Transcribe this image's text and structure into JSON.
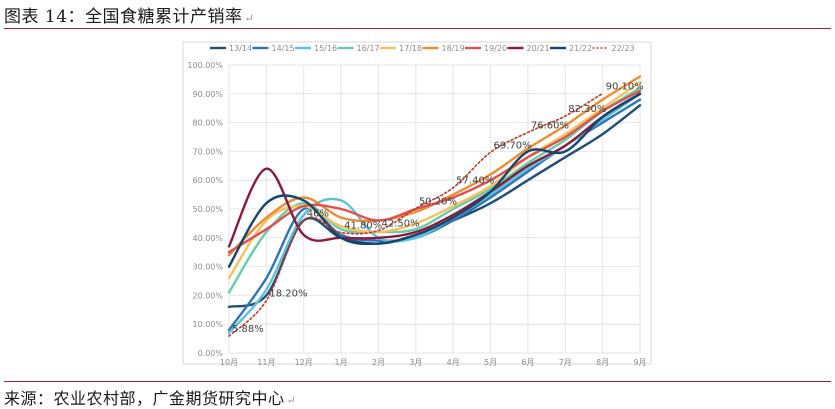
{
  "header": {
    "title": "图表 14：全国食糖累计产销率",
    "return_mark": "↵"
  },
  "footer": {
    "source": "来源：农业农村部，广金期货研究中心",
    "return_mark": "↵"
  },
  "chart_data": {
    "type": "line",
    "title": "",
    "xlabel": "",
    "ylabel": "",
    "ylim": [
      0,
      100
    ],
    "ytick_labels": [
      "0.00%",
      "10.00%",
      "20.00%",
      "30.00%",
      "40.00%",
      "50.00%",
      "60.00%",
      "70.00%",
      "80.00%",
      "90.00%",
      "100.00%"
    ],
    "categories": [
      "10月",
      "11月",
      "12月",
      "1月",
      "2月",
      "3月",
      "4月",
      "5月",
      "6月",
      "7月",
      "8月",
      "9月"
    ],
    "legend_position": "top",
    "series": [
      {
        "name": "13/14",
        "color": "#1f4e79",
        "dash": false,
        "values": [
          16,
          20,
          46,
          40,
          38,
          41,
          46,
          52,
          60,
          68,
          76,
          86
        ]
      },
      {
        "name": "14/15",
        "color": "#2e75b6",
        "dash": false,
        "values": [
          8,
          26,
          50,
          41,
          39,
          40,
          46,
          54,
          63,
          72,
          80,
          88
        ]
      },
      {
        "name": "15/16",
        "color": "#5bc0de",
        "dash": false,
        "values": [
          7,
          22,
          48,
          53,
          40,
          40,
          47,
          55,
          64,
          72,
          81,
          90
        ]
      },
      {
        "name": "16/17",
        "color": "#66cdaa",
        "dash": false,
        "values": [
          21,
          42,
          52,
          43,
          42,
          43,
          50,
          57,
          66,
          74,
          84,
          92
        ]
      },
      {
        "name": "17/18",
        "color": "#f5c15f",
        "dash": false,
        "values": [
          26,
          46,
          51,
          44,
          42,
          45,
          51,
          58,
          68,
          76,
          85,
          94
        ]
      },
      {
        "name": "18/19",
        "color": "#ed8b2f",
        "dash": false,
        "values": [
          34,
          47,
          54,
          47,
          46,
          49,
          55,
          62,
          71,
          79,
          88,
          96
        ]
      },
      {
        "name": "19/20",
        "color": "#e0504f",
        "dash": false,
        "values": [
          35,
          43,
          51,
          50,
          46,
          50,
          54,
          60,
          68,
          75,
          84,
          91
        ]
      },
      {
        "name": "20/21",
        "color": "#8b1a3c",
        "dash": false,
        "values": [
          37,
          64,
          41,
          40,
          40,
          42,
          48,
          56,
          65,
          72,
          82,
          90
        ]
      },
      {
        "name": "21/22",
        "color": "#15466f",
        "dash": false,
        "values": [
          30,
          52,
          53,
          40,
          38,
          41,
          47,
          56,
          70,
          70,
          82,
          90
        ]
      },
      {
        "name": "22/23",
        "color": "#c0392b",
        "dash": true,
        "values": [
          5.88,
          18.2,
          46,
          41.8,
          42.5,
          50.2,
          57.4,
          69.7,
          76.6,
          82.3,
          90.1,
          null
        ]
      }
    ],
    "annotations": [
      {
        "text": "5.88%",
        "x": "10月",
        "y": 5.88
      },
      {
        "text": "18.20%",
        "x": "11月",
        "y": 18.2
      },
      {
        "text": "46%",
        "x": "12月",
        "y": 46
      },
      {
        "text": "41.80%",
        "x": "1月",
        "y": 41.8
      },
      {
        "text": "42.50%",
        "x": "2月",
        "y": 42.5
      },
      {
        "text": "50.20%",
        "x": "3月",
        "y": 50.2
      },
      {
        "text": "57.40%",
        "x": "4月",
        "y": 57.4
      },
      {
        "text": "69.70%",
        "x": "5月",
        "y": 69.7
      },
      {
        "text": "76.60%",
        "x": "6月",
        "y": 76.6
      },
      {
        "text": "82.30%",
        "x": "7月",
        "y": 82.3
      },
      {
        "text": "90.10%",
        "x": "8月",
        "y": 90.1
      }
    ]
  }
}
